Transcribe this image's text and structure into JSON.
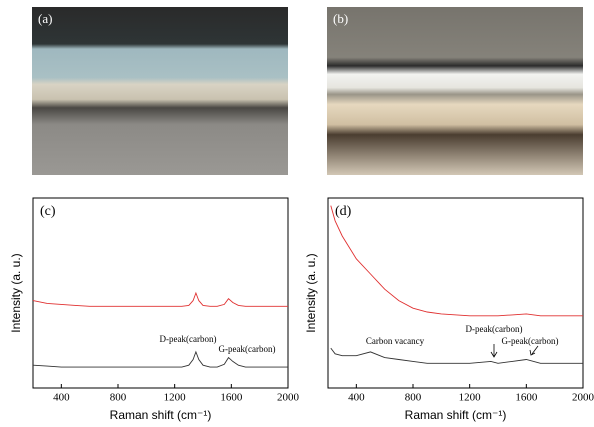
{
  "panels": [
    {
      "label": "(a)"
    },
    {
      "label": "(b)"
    }
  ],
  "chart_data": [
    {
      "type": "line",
      "title": "(c)",
      "xlabel": "Raman shift (cm⁻¹)",
      "ylabel": "Intensity (a. u.)",
      "x": [
        200,
        300,
        400,
        500,
        600,
        700,
        800,
        900,
        1000,
        1100,
        1200,
        1250,
        1300,
        1330,
        1350,
        1370,
        1400,
        1450,
        1500,
        1550,
        1580,
        1610,
        1650,
        1700,
        1800,
        1900,
        2000
      ],
      "series": [
        {
          "color": "#e03030",
          "values": [
            0.46,
            0.445,
            0.44,
            0.435,
            0.43,
            0.43,
            0.43,
            0.43,
            0.43,
            0.43,
            0.43,
            0.43,
            0.435,
            0.46,
            0.5,
            0.46,
            0.435,
            0.43,
            0.43,
            0.44,
            0.47,
            0.45,
            0.435,
            0.43,
            0.43,
            0.43,
            0.43
          ]
        },
        {
          "color": "#333333",
          "values": [
            0.12,
            0.115,
            0.11,
            0.11,
            0.11,
            0.11,
            0.11,
            0.11,
            0.11,
            0.11,
            0.11,
            0.11,
            0.12,
            0.15,
            0.19,
            0.15,
            0.12,
            0.11,
            0.11,
            0.125,
            0.16,
            0.14,
            0.12,
            0.11,
            0.11,
            0.11,
            0.11
          ]
        }
      ],
      "xlim": [
        200,
        2000
      ],
      "ylim": [
        0,
        1
      ],
      "xticks": [
        400,
        800,
        1200,
        1600,
        2000
      ],
      "annotations": [
        {
          "text": "D-peak(carbon)"
        },
        {
          "text": "G-peak(carbon)"
        }
      ]
    },
    {
      "type": "line",
      "title": "(d)",
      "xlabel": "Raman shift (cm⁻¹)",
      "ylabel": "Intensity (a. u.)",
      "x": [
        220,
        250,
        300,
        400,
        500,
        600,
        700,
        800,
        900,
        1000,
        1200,
        1350,
        1400,
        1500,
        1600,
        1700,
        1800,
        2000
      ],
      "series": [
        {
          "color": "#e03030",
          "values": [
            0.96,
            0.88,
            0.8,
            0.68,
            0.6,
            0.52,
            0.46,
            0.42,
            0.4,
            0.39,
            0.38,
            0.38,
            0.38,
            0.385,
            0.39,
            0.38,
            0.38,
            0.38
          ]
        },
        {
          "color": "#333333",
          "values": [
            0.21,
            0.18,
            0.17,
            0.17,
            0.19,
            0.16,
            0.15,
            0.14,
            0.13,
            0.13,
            0.13,
            0.14,
            0.13,
            0.14,
            0.15,
            0.13,
            0.13,
            0.13
          ]
        }
      ],
      "xlim": [
        200,
        2000
      ],
      "ylim": [
        0,
        1
      ],
      "xticks": [
        400,
        800,
        1200,
        1600,
        2000
      ],
      "annotations": [
        {
          "text": "Carbon vacancy"
        },
        {
          "text": "D-peak(carbon)"
        },
        {
          "text": "G-peak(carbon)"
        }
      ]
    }
  ]
}
